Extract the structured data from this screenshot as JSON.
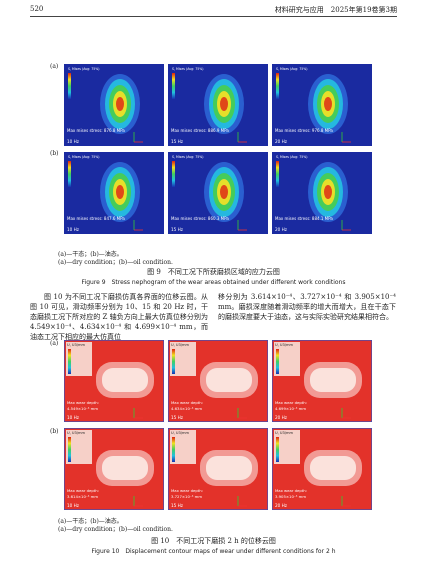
{
  "header": {
    "page": "520",
    "journal": "材料研究与应用　2025年第19卷第3期"
  },
  "figure9": {
    "row_labels": [
      "(a)",
      "(b)"
    ],
    "panels": [
      {
        "legend": "S, Mises (Avg: 75%)",
        "max_label": "Max mises stress: 876.8 MPa",
        "frequency": "10 Hz"
      },
      {
        "legend": "S, Mises (Avg: 75%)",
        "max_label": "Max mises stress: 886.9 MPa",
        "frequency": "15 Hz"
      },
      {
        "legend": "S, Mises (Avg: 75%)",
        "max_label": "Max mises stress: 976.8 MPa",
        "frequency": "20 Hz"
      },
      {
        "legend": "S, Mises (Avg: 75%)",
        "max_label": "Max mises stress: 847.6 MPa",
        "frequency": "10 Hz"
      },
      {
        "legend": "S, Mises (Avg: 75%)",
        "max_label": "Max mises stress: 860.3 MPa",
        "frequency": "15 Hz"
      },
      {
        "legend": "S, Mises (Avg: 75%)",
        "max_label": "Max mises stress: 884.1 MPa",
        "frequency": "20 Hz"
      }
    ],
    "notes": [
      "(a)—干态；(b)—油态。",
      "(a)—dry condition；(b)—oil condition."
    ],
    "caption_zh": "图 9　不同工况下所获磨损区域的应力云图",
    "caption_en": "Figure 9　Stress nephogram of the wear areas obtained under different work conditions"
  },
  "body": {
    "left": "图 10 为不同工况下磨损仿真各界面的位移云图。从图 10 可见，滑动频率分别为 10、15 和 20 Hz 时，干态磨损工况下所对应的 Z 轴负方向上最大仿真位移分别为 4.549×10⁻⁴、4.634×10⁻⁴ 和 4.699×10⁻⁴ mm，而油态工况下相应的最大仿真位",
    "right": "移分别为 3.614×10⁻⁴、3.727×10⁻⁴ 和 3.905×10⁻⁴ mm。磨损深度随着滑动频率的增大而增大，且在干态下的磨损深度要大于油态，这与实际实验研究结果相符合。"
  },
  "figure10": {
    "row_labels": [
      "(a)",
      "(b)"
    ],
    "panels": [
      {
        "legend": "U, U3/mm",
        "max_label": "Max wear depth:",
        "max_value": "4.549×10⁻⁴ mm",
        "frequency": "10 Hz"
      },
      {
        "legend": "U, U3/mm",
        "max_label": "Max wear depth:",
        "max_value": "4.634×10⁻⁴ mm",
        "frequency": "15 Hz"
      },
      {
        "legend": "U, U3/mm",
        "max_label": "Max wear depth:",
        "max_value": "4.699×10⁻⁴ mm",
        "frequency": "20 Hz"
      },
      {
        "legend": "U, U3/mm",
        "max_label": "Max wear depth:",
        "max_value": "3.614×10⁻⁴ mm",
        "frequency": "10 Hz"
      },
      {
        "legend": "U, U3/mm",
        "max_label": "Max wear depth:",
        "max_value": "3.727×10⁻⁴ mm",
        "frequency": "15 Hz"
      },
      {
        "legend": "U, U3/mm",
        "max_label": "Max wear depth:",
        "max_value": "3.905×10⁻⁴ mm",
        "frequency": "20 Hz"
      }
    ],
    "notes": [
      "(a)—干态；(b)—油态。",
      "(a)—dry condition；(b)—oil condition."
    ],
    "caption_zh": "图 10　不同工况下磨损 2 h 的位移云图",
    "caption_en": "Figure 10　Displacement contour maps of wear under different conditions for 2 h"
  }
}
